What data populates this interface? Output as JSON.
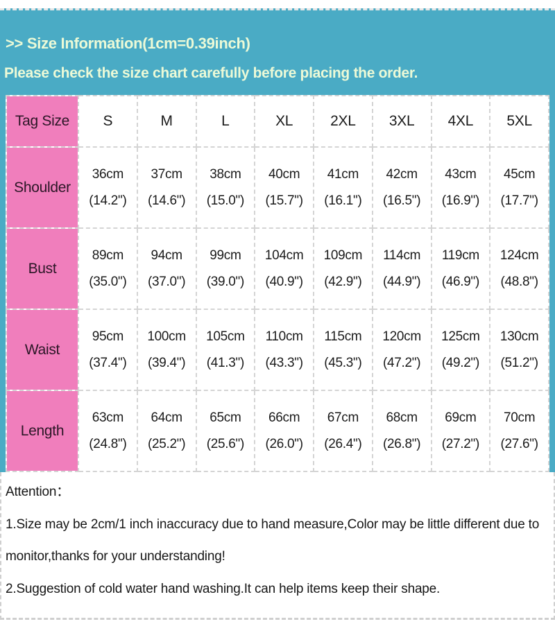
{
  "header": {
    "title": ">> Size Information(1cm=0.39inch)",
    "subtitle": "Please check the size chart carefully before placing the order."
  },
  "size_chart": {
    "corner_label": "Tag Size",
    "sizes": [
      "S",
      "M",
      "L",
      "XL",
      "2XL",
      "3XL",
      "4XL",
      "5XL"
    ],
    "rows": [
      {
        "label": "Shoulder",
        "cm": [
          "36cm",
          "37cm",
          "38cm",
          "40cm",
          "41cm",
          "42cm",
          "43cm",
          "45cm"
        ],
        "inch": [
          "(14.2\")",
          "(14.6\")",
          "(15.0\")",
          "(15.7\")",
          "(16.1\")",
          "(16.5\")",
          "(16.9\")",
          "(17.7\")"
        ]
      },
      {
        "label": "Bust",
        "cm": [
          "89cm",
          "94cm",
          "99cm",
          "104cm",
          "109cm",
          "114cm",
          "119cm",
          "124cm"
        ],
        "inch": [
          "(35.0\")",
          "(37.0\")",
          "(39.0\")",
          "(40.9\")",
          "(42.9\")",
          "(44.9\")",
          "(46.9\")",
          "(48.8\")"
        ]
      },
      {
        "label": "Waist",
        "cm": [
          "95cm",
          "100cm",
          "105cm",
          "110cm",
          "115cm",
          "120cm",
          "125cm",
          "130cm"
        ],
        "inch": [
          "(37.4\")",
          "(39.4\")",
          "(41.3\")",
          "(43.3\")",
          "(45.3\")",
          "(47.2\")",
          "(49.2\")",
          "(51.2\")"
        ]
      },
      {
        "label": "Length",
        "cm": [
          "63cm",
          "64cm",
          "65cm",
          "66cm",
          "67cm",
          "68cm",
          "69cm",
          "70cm"
        ],
        "inch": [
          "(24.8\")",
          "(25.2\")",
          "(25.6\")",
          "(26.0\")",
          "(26.4\")",
          "(26.8\")",
          "(27.2\")",
          "(27.6\")"
        ]
      }
    ]
  },
  "attention": {
    "heading": "Attention：",
    "notes": [
      "1.Size may be 2cm/1 inch inaccuracy due to hand measure,Color may be little different due to monitor,thanks for your understanding!",
      "2.Suggestion of cold water hand washing.It can help items keep their shape."
    ]
  },
  "colors": {
    "teal": "#4AABC5",
    "pink": "#F07EBC",
    "header_text": "#ECFAD7",
    "dashed_border": "#d4d4d4"
  },
  "chart_data": {
    "type": "table",
    "title": "Size Information(1cm=0.39inch)",
    "categories": [
      "S",
      "M",
      "L",
      "XL",
      "2XL",
      "3XL",
      "4XL",
      "5XL"
    ],
    "series": [
      {
        "name": "Shoulder",
        "cm": [
          36,
          37,
          38,
          40,
          41,
          42,
          43,
          45
        ],
        "inch": [
          14.2,
          14.6,
          15.0,
          15.7,
          16.1,
          16.5,
          16.9,
          17.7
        ]
      },
      {
        "name": "Bust",
        "cm": [
          89,
          94,
          99,
          104,
          109,
          114,
          119,
          124
        ],
        "inch": [
          35.0,
          37.0,
          39.0,
          40.9,
          42.9,
          44.9,
          46.9,
          48.8
        ]
      },
      {
        "name": "Waist",
        "cm": [
          95,
          100,
          105,
          110,
          115,
          120,
          125,
          130
        ],
        "inch": [
          37.4,
          39.4,
          41.3,
          43.3,
          45.3,
          47.2,
          49.2,
          51.2
        ]
      },
      {
        "name": "Length",
        "cm": [
          63,
          64,
          65,
          66,
          67,
          68,
          69,
          70
        ],
        "inch": [
          24.8,
          25.2,
          25.6,
          26.0,
          26.4,
          26.8,
          27.2,
          27.6
        ]
      }
    ]
  }
}
